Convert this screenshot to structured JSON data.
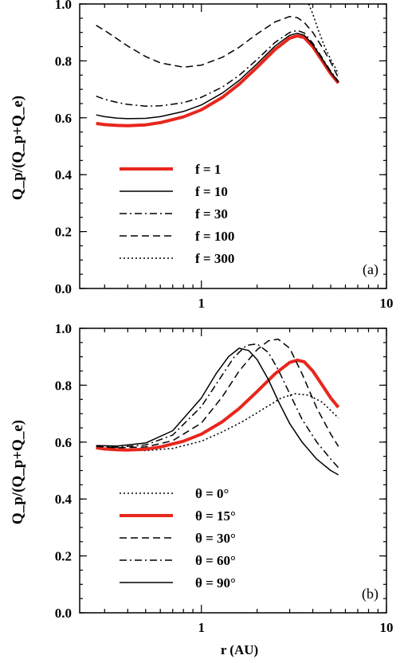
{
  "chart_data": [
    {
      "type": "line",
      "panel_label": "(a)",
      "xlabel": "",
      "ylabel": "Q_p/(Q_p+Q_e)",
      "x_scale": "log",
      "xlim": [
        0.22,
        10
      ],
      "ylim": [
        0,
        1
      ],
      "xticklabels": [
        "1",
        "10"
      ],
      "yticklabels": [
        "0.0",
        "0.2",
        "0.4",
        "0.6",
        "0.8",
        "1.0"
      ],
      "legend_position": "lower-left",
      "series": [
        {
          "name": "f = 1",
          "style": "solid-thick",
          "color": "#e8261c",
          "x": [
            0.27,
            0.3,
            0.35,
            0.4,
            0.5,
            0.6,
            0.8,
            1.0,
            1.3,
            1.6,
            2.0,
            2.5,
            3.0,
            3.3,
            3.6,
            4.0,
            4.5,
            5.0,
            5.5
          ],
          "y": [
            0.58,
            0.576,
            0.573,
            0.572,
            0.575,
            0.583,
            0.603,
            0.628,
            0.672,
            0.718,
            0.778,
            0.84,
            0.88,
            0.888,
            0.882,
            0.85,
            0.8,
            0.755,
            0.722
          ]
        },
        {
          "name": "f = 10",
          "style": "solid",
          "color": "#000000",
          "x": [
            0.27,
            0.3,
            0.35,
            0.4,
            0.5,
            0.6,
            0.8,
            1.0,
            1.3,
            1.6,
            2.0,
            2.5,
            3.0,
            3.3,
            3.6,
            4.0,
            4.5,
            5.0,
            5.5
          ],
          "y": [
            0.61,
            0.604,
            0.599,
            0.597,
            0.598,
            0.604,
            0.622,
            0.645,
            0.687,
            0.731,
            0.79,
            0.852,
            0.89,
            0.897,
            0.89,
            0.857,
            0.806,
            0.76,
            0.725
          ]
        },
        {
          "name": "f = 30",
          "style": "dashdot",
          "color": "#000000",
          "x": [
            0.27,
            0.3,
            0.35,
            0.4,
            0.5,
            0.6,
            0.8,
            1.0,
            1.3,
            1.6,
            2.0,
            2.5,
            3.0,
            3.3,
            3.6,
            4.0,
            4.5,
            5.0,
            5.5
          ],
          "y": [
            0.676,
            0.665,
            0.654,
            0.647,
            0.641,
            0.642,
            0.653,
            0.672,
            0.708,
            0.749,
            0.805,
            0.865,
            0.9,
            0.907,
            0.898,
            0.862,
            0.81,
            0.763,
            0.728
          ]
        },
        {
          "name": "f = 100",
          "style": "dashed",
          "color": "#000000",
          "x": [
            0.27,
            0.3,
            0.35,
            0.4,
            0.5,
            0.6,
            0.8,
            1.0,
            1.3,
            1.6,
            2.0,
            2.5,
            3.0,
            3.3,
            3.6,
            4.0,
            4.5,
            5.0,
            5.5
          ],
          "y": [
            0.925,
            0.907,
            0.878,
            0.852,
            0.815,
            0.793,
            0.778,
            0.785,
            0.813,
            0.848,
            0.895,
            0.937,
            0.956,
            0.952,
            0.935,
            0.9,
            0.847,
            0.795,
            0.74
          ]
        },
        {
          "name": "f = 300",
          "style": "dotted",
          "color": "#000000",
          "x": [
            3.8,
            4.0,
            4.3,
            4.6,
            5.0,
            5.5
          ],
          "y": [
            1.0,
            0.965,
            0.905,
            0.855,
            0.805,
            0.755
          ]
        }
      ]
    },
    {
      "type": "line",
      "panel_label": "(b)",
      "xlabel": "r (AU)",
      "ylabel": "Q_p/(Q_p+Q_e)",
      "x_scale": "log",
      "xlim": [
        0.22,
        10
      ],
      "ylim": [
        0,
        1
      ],
      "xticklabels": [
        "1",
        "10"
      ],
      "yticklabels": [
        "0.0",
        "0.2",
        "0.4",
        "0.6",
        "0.8",
        "1.0"
      ],
      "legend_position": "lower-left",
      "series": [
        {
          "name": "θ = 0°",
          "style": "dotted",
          "color": "#000000",
          "x": [
            0.27,
            0.35,
            0.5,
            0.7,
            1.0,
            1.3,
            1.7,
            2.2,
            2.7,
            3.2,
            3.8,
            4.5,
            5.5
          ],
          "y": [
            0.58,
            0.573,
            0.57,
            0.578,
            0.603,
            0.636,
            0.675,
            0.72,
            0.755,
            0.77,
            0.765,
            0.74,
            0.685
          ]
        },
        {
          "name": "θ = 15°",
          "style": "solid-thick",
          "color": "#e8261c",
          "x": [
            0.27,
            0.3,
            0.35,
            0.4,
            0.5,
            0.6,
            0.8,
            1.0,
            1.3,
            1.6,
            2.0,
            2.5,
            3.0,
            3.3,
            3.6,
            4.0,
            4.5,
            5.0,
            5.5
          ],
          "y": [
            0.58,
            0.576,
            0.573,
            0.572,
            0.575,
            0.583,
            0.603,
            0.628,
            0.672,
            0.718,
            0.778,
            0.84,
            0.88,
            0.888,
            0.882,
            0.85,
            0.8,
            0.755,
            0.722
          ]
        },
        {
          "name": "θ = 30°",
          "style": "dashed",
          "color": "#000000",
          "x": [
            0.27,
            0.35,
            0.5,
            0.7,
            1.0,
            1.3,
            1.6,
            2.0,
            2.3,
            2.6,
            3.0,
            3.5,
            4.2,
            5.0,
            5.5
          ],
          "y": [
            0.585,
            0.58,
            0.583,
            0.605,
            0.667,
            0.76,
            0.85,
            0.925,
            0.956,
            0.962,
            0.93,
            0.84,
            0.72,
            0.628,
            0.585
          ]
        },
        {
          "name": "θ = 60°",
          "style": "dashdot",
          "color": "#000000",
          "x": [
            0.27,
            0.35,
            0.5,
            0.7,
            1.0,
            1.25,
            1.5,
            1.75,
            2.0,
            2.3,
            2.6,
            3.0,
            3.5,
            4.2,
            5.0,
            5.5
          ],
          "y": [
            0.585,
            0.582,
            0.59,
            0.625,
            0.725,
            0.82,
            0.898,
            0.94,
            0.945,
            0.915,
            0.855,
            0.77,
            0.68,
            0.6,
            0.54,
            0.51
          ]
        },
        {
          "name": "θ = 90°",
          "style": "solid",
          "color": "#000000",
          "x": [
            0.27,
            0.35,
            0.5,
            0.7,
            1.0,
            1.2,
            1.4,
            1.6,
            1.8,
            2.0,
            2.3,
            2.6,
            3.0,
            3.5,
            4.2,
            5.0,
            5.5
          ],
          "y": [
            0.588,
            0.586,
            0.597,
            0.64,
            0.755,
            0.84,
            0.9,
            0.93,
            0.922,
            0.89,
            0.82,
            0.745,
            0.665,
            0.6,
            0.54,
            0.5,
            0.485
          ]
        }
      ]
    }
  ]
}
